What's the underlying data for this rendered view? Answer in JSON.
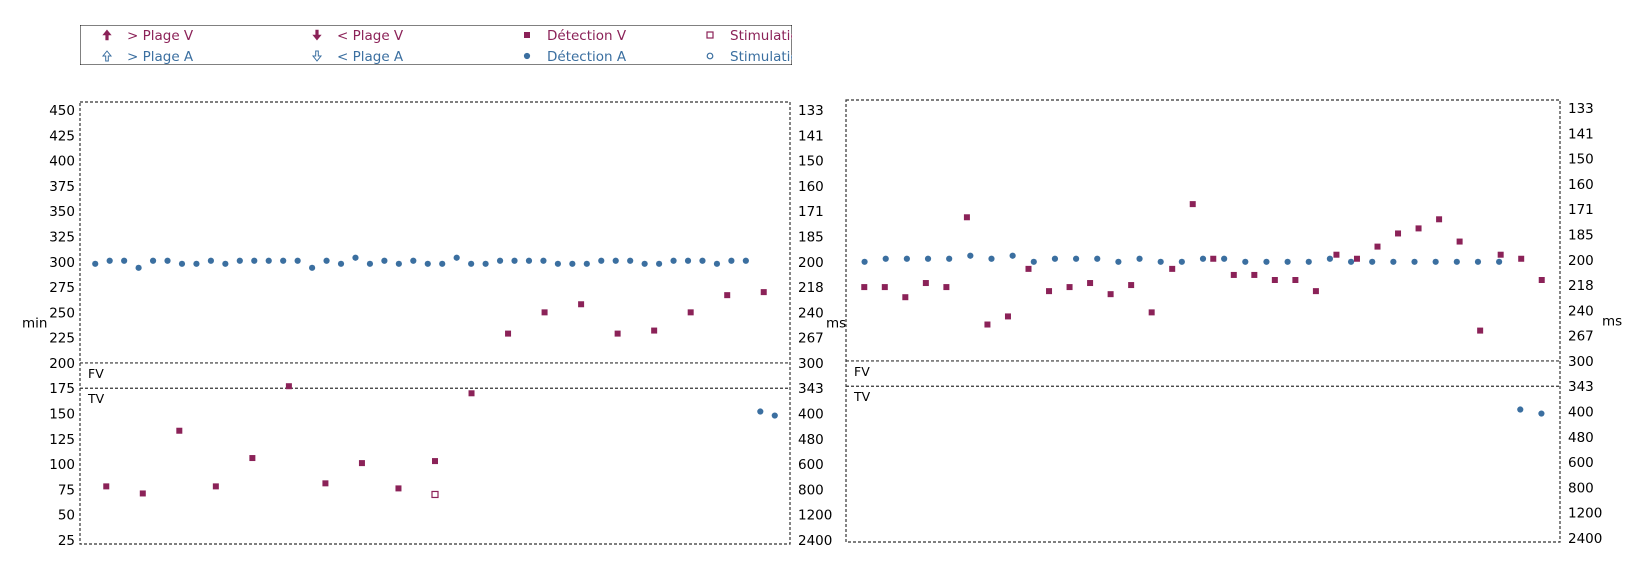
{
  "colors": {
    "ventricular": "#8b2258",
    "atrial": "#3b6fa0",
    "frame": "#333333",
    "text": "#000000"
  },
  "legend": {
    "entries": [
      {
        "label": "> Plage V",
        "marker": "up-arrow-filled",
        "color": "#8b2258"
      },
      {
        "label": "> Plage A",
        "marker": "up-arrow-open",
        "color": "#3b6fa0"
      },
      {
        "label": "< Plage V",
        "marker": "down-arrow-filled",
        "color": "#8b2258"
      },
      {
        "label": "< Plage A",
        "marker": "down-arrow-open",
        "color": "#3b6fa0"
      },
      {
        "label": "Détection V",
        "marker": "square-filled",
        "color": "#8b2258"
      },
      {
        "label": "Détection A",
        "marker": "circle-filled",
        "color": "#3b6fa0"
      },
      {
        "label": "Stimulatic",
        "marker": "square-open",
        "color": "#8b2258"
      },
      {
        "label": "Stimulatic",
        "marker": "circle-open",
        "color": "#3b6fa0"
      }
    ]
  },
  "chart_data": [
    {
      "type": "scatter",
      "ylabel_left": "min",
      "ylabel_right": "ms",
      "left_ticks": [
        450,
        425,
        400,
        375,
        350,
        325,
        300,
        275,
        250,
        225,
        200,
        175,
        150,
        125,
        100,
        75,
        50,
        25
      ],
      "right_ticks": [
        "133",
        "141",
        "150",
        "160",
        "171",
        "185",
        "200",
        "218",
        "240",
        "267",
        "300",
        "343",
        "400",
        "480",
        "600",
        "800",
        "1200",
        "2400"
      ],
      "ylim": [
        25,
        450
      ],
      "zone_labels": [
        "FV",
        "TV"
      ],
      "zone_thresholds": [
        200,
        175
      ],
      "series": [
        {
          "name": "Détection A",
          "marker": "circle-filled",
          "values": [
            298,
            301,
            301,
            294,
            301,
            301,
            298,
            298,
            301,
            298,
            301,
            301,
            301,
            301,
            301,
            294,
            301,
            298,
            304,
            298,
            301,
            298,
            301,
            298,
            298,
            304,
            298,
            298,
            301,
            301,
            301,
            301,
            298,
            298,
            298,
            301,
            301,
            301,
            298,
            298,
            301,
            301,
            301,
            298,
            301,
            301,
            152,
            148
          ]
        },
        {
          "name": "Détection V",
          "marker": "square-filled",
          "values": [
            78,
            71,
            133,
            78,
            106,
            177,
            81,
            101,
            76,
            103,
            170,
            229,
            250,
            258,
            229,
            232,
            250,
            267,
            270
          ]
        },
        {
          "name": "Stimulation V",
          "marker": "square-open",
          "values": [
            70
          ]
        }
      ]
    },
    {
      "type": "scatter",
      "ylabel_left": "",
      "ylabel_right": "ms",
      "left_ticks": [],
      "right_ticks": [
        "133",
        "141",
        "150",
        "160",
        "171",
        "185",
        "200",
        "218",
        "240",
        "267",
        "300",
        "343",
        "400",
        "480",
        "600",
        "800",
        "1200",
        "2400"
      ],
      "ylim": [
        25,
        450
      ],
      "zone_labels": [
        "FV",
        "TV"
      ],
      "zone_thresholds": [
        200,
        175
      ],
      "series": [
        {
          "name": "Détection A",
          "marker": "circle-filled",
          "values": [
            298,
            301,
            301,
            301,
            301,
            304,
            301,
            304,
            298,
            301,
            301,
            301,
            298,
            301,
            298,
            298,
            301,
            301,
            298,
            298,
            298,
            298,
            301,
            298,
            298,
            298,
            298,
            298,
            298,
            298,
            298,
            152,
            148
          ]
        },
        {
          "name": "Détection V",
          "marker": "square-filled",
          "values": [
            273,
            273,
            263,
            277,
            273,
            342,
            236,
            244,
            291,
            269,
            273,
            277,
            266,
            275,
            248,
            291,
            355,
            301,
            285,
            285,
            280,
            280,
            269,
            305,
            301,
            313,
            326,
            331,
            340,
            318,
            230,
            305,
            301,
            280
          ]
        }
      ]
    }
  ]
}
